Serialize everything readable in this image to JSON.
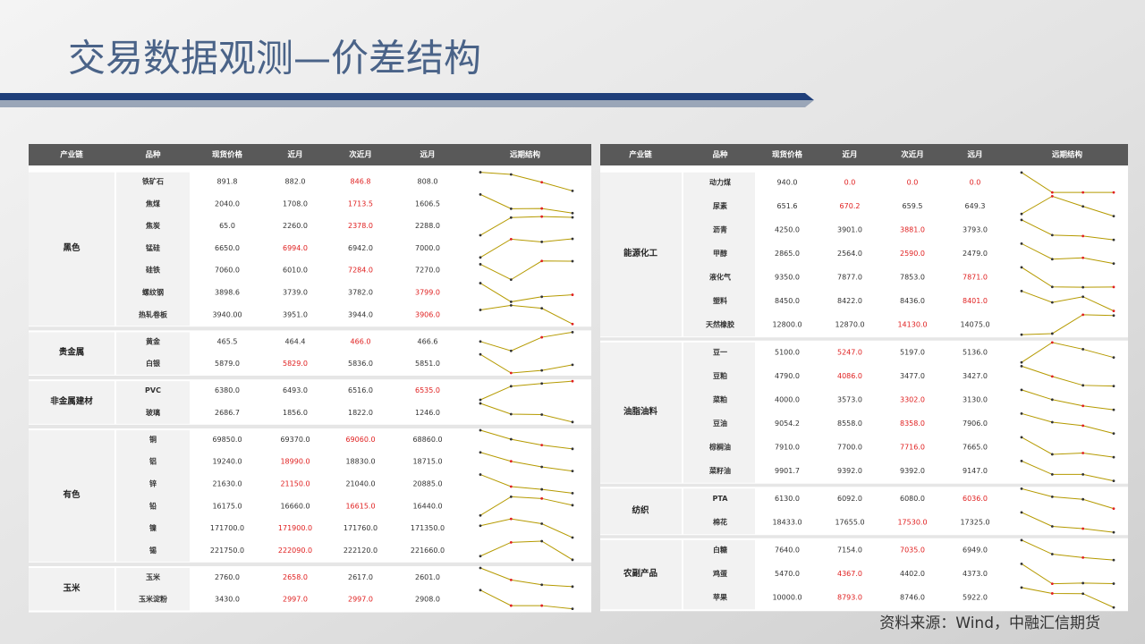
{
  "title": "交易数据观测—价差结构",
  "source": "资料来源：Wind，中融汇信期货",
  "tables": [
    {
      "columns": [
        "产业链",
        "品种",
        "现货价格",
        "近月",
        "次近月",
        "远月",
        "远期结构"
      ],
      "groups": [
        {
          "name": "黑色",
          "rows": [
            {
              "name": "铁矿石",
              "values": [
                "891.8",
                "882.0",
                "846.8",
                "808.0"
              ],
              "highlight": [
                2
              ]
            },
            {
              "name": "焦煤",
              "values": [
                "2040.0",
                "1708.0",
                "1713.5",
                "1606.5"
              ],
              "highlight": [
                2
              ]
            },
            {
              "name": "焦炭",
              "values": [
                "65.0",
                "2260.0",
                "2378.0",
                "2288.0"
              ],
              "highlight": [
                2
              ]
            },
            {
              "name": "锰硅",
              "values": [
                "6650.0",
                "6994.0",
                "6942.0",
                "7000.0"
              ],
              "highlight": [
                1
              ]
            },
            {
              "name": "硅铁",
              "values": [
                "7060.0",
                "6010.0",
                "7284.0",
                "7270.0"
              ],
              "highlight": [
                2
              ]
            },
            {
              "name": "螺纹钢",
              "values": [
                "3898.6",
                "3739.0",
                "3782.0",
                "3799.0"
              ],
              "highlight": [
                3
              ]
            },
            {
              "name": "热轧卷板",
              "values": [
                "3940.00",
                "3951.0",
                "3944.0",
                "3906.0"
              ],
              "highlight": [
                3
              ]
            }
          ]
        },
        {
          "name": "贵金属",
          "rows": [
            {
              "name": "黄金",
              "values": [
                "465.5",
                "464.4",
                "466.0",
                "466.6"
              ],
              "highlight": [
                2
              ]
            },
            {
              "name": "白银",
              "values": [
                "5879.0",
                "5829.0",
                "5836.0",
                "5851.0"
              ],
              "highlight": [
                1
              ]
            }
          ]
        },
        {
          "name": "非金属建材",
          "rows": [
            {
              "name": "PVC",
              "values": [
                "6380.0",
                "6493.0",
                "6516.0",
                "6535.0"
              ],
              "highlight": [
                3
              ]
            },
            {
              "name": "玻璃",
              "values": [
                "2686.7",
                "1856.0",
                "1822.0",
                "1246.0"
              ],
              "highlight": []
            }
          ]
        },
        {
          "name": "有色",
          "rows": [
            {
              "name": "铜",
              "values": [
                "69850.0",
                "69370.0",
                "69060.0",
                "68860.0"
              ],
              "highlight": [
                2
              ]
            },
            {
              "name": "铝",
              "values": [
                "19240.0",
                "18990.0",
                "18830.0",
                "18715.0"
              ],
              "highlight": [
                1
              ]
            },
            {
              "name": "锌",
              "values": [
                "21630.0",
                "21150.0",
                "21040.0",
                "20885.0"
              ],
              "highlight": [
                1
              ]
            },
            {
              "name": "铅",
              "values": [
                "16175.0",
                "16660.0",
                "16615.0",
                "16440.0"
              ],
              "highlight": [
                2
              ]
            },
            {
              "name": "镍",
              "values": [
                "171700.0",
                "171900.0",
                "171760.0",
                "171350.0"
              ],
              "highlight": [
                1
              ]
            },
            {
              "name": "锡",
              "values": [
                "221750.0",
                "222090.0",
                "222120.0",
                "221660.0"
              ],
              "highlight": [
                1
              ]
            }
          ]
        },
        {
          "name": "玉米",
          "rows": [
            {
              "name": "玉米",
              "values": [
                "2760.0",
                "2658.0",
                "2617.0",
                "2601.0"
              ],
              "highlight": [
                1
              ]
            },
            {
              "name": "玉米淀粉",
              "values": [
                "3430.0",
                "2997.0",
                "2997.0",
                "2908.0"
              ],
              "highlight": [
                1,
                2
              ]
            }
          ]
        }
      ]
    },
    {
      "columns": [
        "产业链",
        "品种",
        "现货价格",
        "近月",
        "次近月",
        "远月",
        "远期结构"
      ],
      "groups": [
        {
          "name": "能源化工",
          "rows": [
            {
              "name": "动力煤",
              "values": [
                "940.0",
                "0.0",
                "0.0",
                "0.0"
              ],
              "highlight": [
                1,
                2,
                3
              ]
            },
            {
              "name": "尿素",
              "values": [
                "651.6",
                "670.2",
                "659.5",
                "649.3"
              ],
              "highlight": [
                1
              ]
            },
            {
              "name": "沥青",
              "values": [
                "4250.0",
                "3901.0",
                "3881.0",
                "3793.0"
              ],
              "highlight": [
                2
              ]
            },
            {
              "name": "甲醇",
              "values": [
                "2865.0",
                "2564.0",
                "2590.0",
                "2479.0"
              ],
              "highlight": [
                2
              ]
            },
            {
              "name": "液化气",
              "values": [
                "9350.0",
                "7877.0",
                "7853.0",
                "7871.0"
              ],
              "highlight": [
                3
              ]
            },
            {
              "name": "塑料",
              "values": [
                "8450.0",
                "8422.0",
                "8436.0",
                "8401.0"
              ],
              "highlight": [
                3
              ]
            },
            {
              "name": "天然橡胶",
              "values": [
                "12800.0",
                "12870.0",
                "14130.0",
                "14075.0"
              ],
              "highlight": [
                2
              ]
            }
          ]
        },
        {
          "name": "油脂油料",
          "rows": [
            {
              "name": "豆一",
              "values": [
                "5100.0",
                "5247.0",
                "5197.0",
                "5136.0"
              ],
              "highlight": [
                1
              ]
            },
            {
              "name": "豆粕",
              "values": [
                "4790.0",
                "4086.0",
                "3477.0",
                "3427.0"
              ],
              "highlight": [
                1
              ]
            },
            {
              "name": "菜粕",
              "values": [
                "4000.0",
                "3573.0",
                "3302.0",
                "3130.0"
              ],
              "highlight": [
                2
              ]
            },
            {
              "name": "豆油",
              "values": [
                "9054.2",
                "8558.0",
                "8358.0",
                "7906.0"
              ],
              "highlight": [
                2
              ]
            },
            {
              "name": "棕榈油",
              "values": [
                "7910.0",
                "7700.0",
                "7716.0",
                "7665.0"
              ],
              "highlight": [
                2
              ]
            },
            {
              "name": "菜籽油",
              "values": [
                "9901.7",
                "9392.0",
                "9392.0",
                "9147.0"
              ],
              "highlight": []
            }
          ]
        },
        {
          "name": "纺织",
          "rows": [
            {
              "name": "PTA",
              "values": [
                "6130.0",
                "6092.0",
                "6080.0",
                "6036.0"
              ],
              "highlight": [
                3
              ]
            },
            {
              "name": "棉花",
              "values": [
                "18433.0",
                "17655.0",
                "17530.0",
                "17325.0"
              ],
              "highlight": [
                2
              ]
            }
          ]
        },
        {
          "name": "农副产品",
          "rows": [
            {
              "name": "白糖",
              "values": [
                "7640.0",
                "7154.0",
                "7035.0",
                "6949.0"
              ],
              "highlight": [
                2
              ]
            },
            {
              "name": "鸡蛋",
              "values": [
                "5470.0",
                "4367.0",
                "4402.0",
                "4373.0"
              ],
              "highlight": [
                1
              ]
            },
            {
              "name": "苹果",
              "values": [
                "10000.0",
                "8793.0",
                "8746.0",
                "5922.0"
              ],
              "highlight": [
                1
              ]
            }
          ]
        }
      ]
    }
  ]
}
